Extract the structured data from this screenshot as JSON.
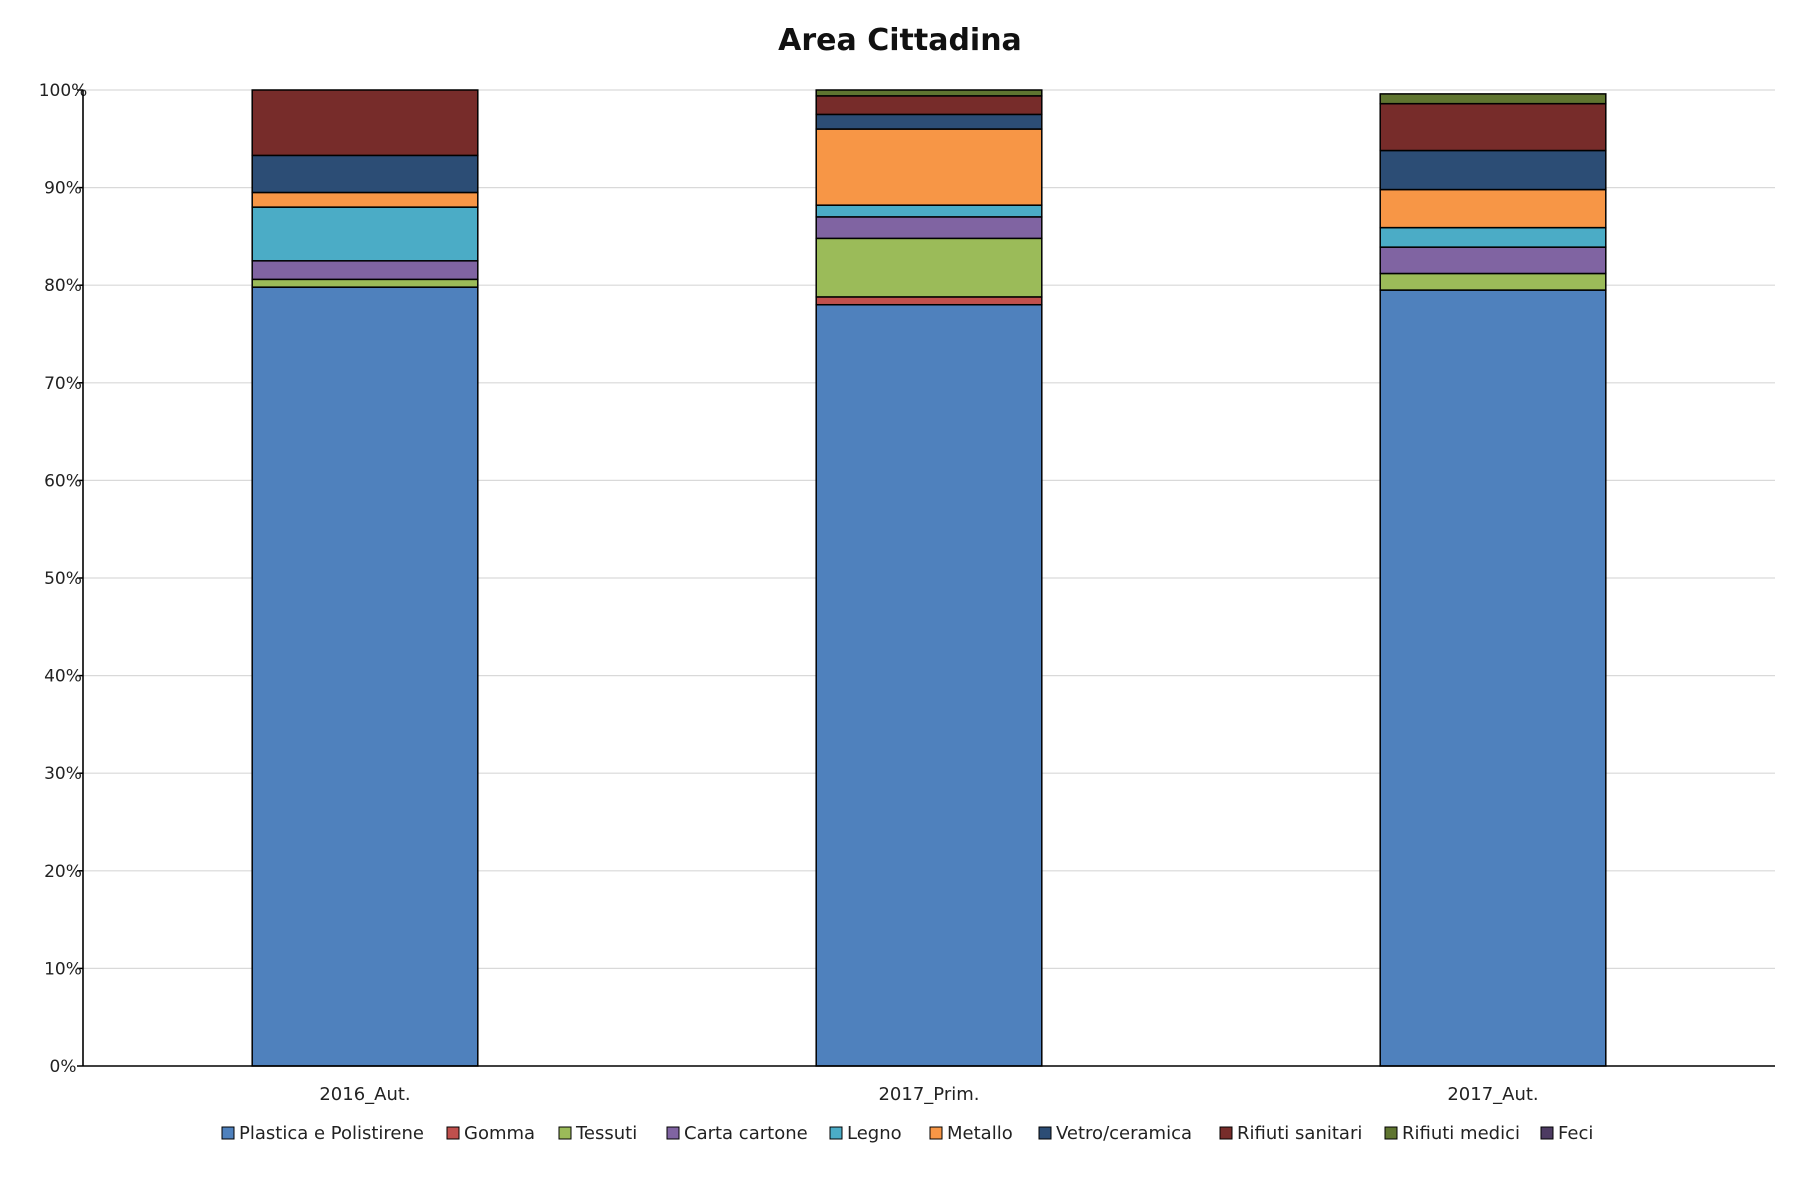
{
  "chart_data": {
    "type": "bar",
    "stacked": true,
    "title": "Area Cittadina",
    "xlabel": "",
    "ylabel": "",
    "ylim": [
      0,
      100
    ],
    "y_tick_labels": [
      "0%",
      "10%",
      "20%",
      "30%",
      "40%",
      "50%",
      "60%",
      "70%",
      "80%",
      "90%",
      "100%"
    ],
    "grid": true,
    "legend_position": "bottom",
    "categories": [
      "2016_Aut.",
      "2017_Prim.",
      "2017_Aut."
    ],
    "series": [
      {
        "name": "Plastica e Polistirene",
        "color": "#4F81BD",
        "values": [
          79.8,
          78.0,
          79.5
        ]
      },
      {
        "name": "Gomma",
        "color": "#C0504D",
        "values": [
          0.0,
          0.8,
          0.0
        ]
      },
      {
        "name": "Tessuti",
        "color": "#9BBB59",
        "values": [
          0.8,
          6.0,
          1.7
        ]
      },
      {
        "name": "Carta cartone",
        "color": "#8064A2",
        "values": [
          1.9,
          2.2,
          2.7
        ]
      },
      {
        "name": "Legno",
        "color": "#4BACC6",
        "values": [
          5.5,
          1.2,
          2.0
        ]
      },
      {
        "name": "Metallo",
        "color": "#F79646",
        "values": [
          1.5,
          7.8,
          3.9
        ]
      },
      {
        "name": "Vetro/ceramica",
        "color": "#2C4D75",
        "values": [
          3.8,
          1.5,
          4.0
        ]
      },
      {
        "name": "Rifiuti sanitari",
        "color": "#772C2A",
        "values": [
          6.7,
          1.9,
          4.8
        ]
      },
      {
        "name": "Rifiuti medici",
        "color": "#5F7530",
        "values": [
          0.0,
          0.6,
          1.0
        ]
      },
      {
        "name": "Feci",
        "color": "#4D3B62",
        "values": [
          0.0,
          0.0,
          0.0
        ]
      }
    ]
  }
}
